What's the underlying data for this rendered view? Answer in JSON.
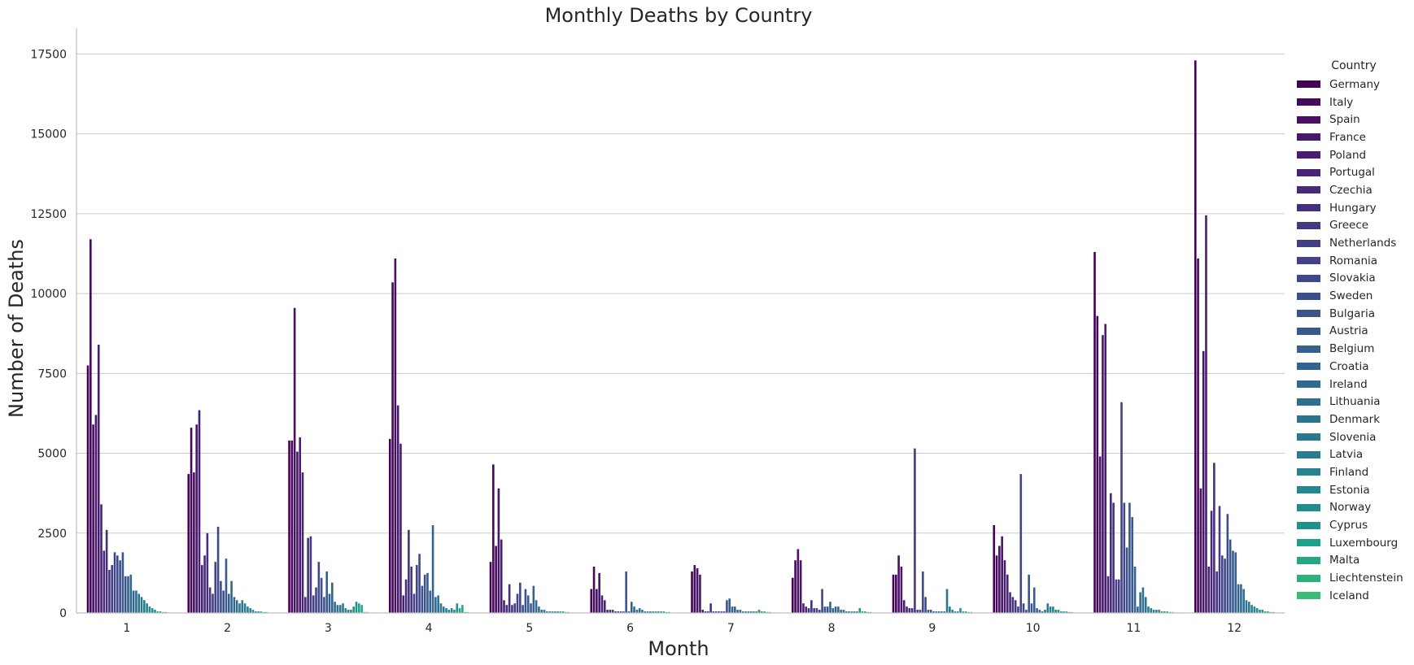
{
  "chart_data": {
    "type": "bar",
    "title": "Monthly Deaths by Country",
    "xlabel": "Month",
    "ylabel": "Number of Deaths",
    "ylim": [
      0,
      18300
    ],
    "yticks": [
      0,
      2500,
      5000,
      7500,
      10000,
      12500,
      15000,
      17500
    ],
    "ytick_labels": [
      "0",
      "2500",
      "5000",
      "7500",
      "10000",
      "12500",
      "15000",
      "17500"
    ],
    "categories": [
      "1",
      "2",
      "3",
      "4",
      "5",
      "6",
      "7",
      "8",
      "9",
      "10",
      "11",
      "12"
    ],
    "grid": "horizontal",
    "legend": {
      "title": "Country",
      "placement": "right"
    },
    "series": [
      {
        "name": "Germany",
        "color": "#440154",
        "values": [
          7750,
          4350,
          5400,
          5450,
          1600,
          750,
          1300,
          1100,
          1200,
          2750,
          11300,
          17300
        ]
      },
      {
        "name": "Italy",
        "color": "#46085c",
        "values": [
          11700,
          5800,
          5400,
          10350,
          4650,
          1450,
          1500,
          1650,
          1200,
          1800,
          9300,
          11100
        ]
      },
      {
        "name": "Spain",
        "color": "#471063",
        "values": [
          5900,
          4400,
          9550,
          11100,
          2100,
          750,
          1400,
          2000,
          1800,
          2100,
          4900,
          3900
        ]
      },
      {
        "name": "France",
        "color": "#481769",
        "values": [
          6200,
          5900,
          5050,
          6500,
          3900,
          1250,
          1200,
          1650,
          1450,
          2400,
          8700,
          8200
        ]
      },
      {
        "name": "Poland",
        "color": "#481d6f",
        "values": [
          8400,
          6350,
          5500,
          5300,
          2300,
          550,
          100,
          300,
          400,
          1650,
          9050,
          12450
        ]
      },
      {
        "name": "Portugal",
        "color": "#482475",
        "values": [
          3400,
          1500,
          4400,
          550,
          400,
          400,
          50,
          200,
          200,
          1200,
          1150,
          1450
        ]
      },
      {
        "name": "Czechia",
        "color": "#472a7a",
        "values": [
          1950,
          1800,
          500,
          1050,
          250,
          100,
          50,
          150,
          150,
          650,
          3750,
          3200
        ]
      },
      {
        "name": "Hungary",
        "color": "#46307e",
        "values": [
          2600,
          2500,
          2350,
          2600,
          900,
          100,
          300,
          400,
          150,
          500,
          3450,
          4700
        ]
      },
      {
        "name": "Greece",
        "color": "#453781",
        "values": [
          1350,
          800,
          2400,
          1450,
          250,
          100,
          50,
          150,
          5150,
          400,
          1050,
          1300
        ]
      },
      {
        "name": "Netherlands",
        "color": "#433d84",
        "values": [
          1500,
          600,
          550,
          600,
          300,
          50,
          50,
          150,
          100,
          200,
          1050,
          3350
        ]
      },
      {
        "name": "Romania",
        "color": "#414287",
        "values": [
          1900,
          1600,
          800,
          1500,
          600,
          50,
          50,
          100,
          100,
          4350,
          6600,
          1800
        ]
      },
      {
        "name": "Slovakia",
        "color": "#3f4889",
        "values": [
          1800,
          2700,
          1600,
          1850,
          950,
          50,
          50,
          750,
          1300,
          300,
          3450,
          1700
        ]
      },
      {
        "name": "Sweden",
        "color": "#3c4f8a",
        "values": [
          1650,
          1000,
          1100,
          850,
          250,
          50,
          50,
          200,
          500,
          100,
          2050,
          3100
        ]
      },
      {
        "name": "Bulgaria",
        "color": "#3a548c",
        "values": [
          1900,
          700,
          500,
          1200,
          750,
          1300,
          400,
          200,
          100,
          1200,
          3450,
          2300
        ]
      },
      {
        "name": "Austria",
        "color": "#375a8c",
        "values": [
          1150,
          1700,
          1300,
          1250,
          550,
          50,
          450,
          350,
          100,
          300,
          3000,
          1950
        ]
      },
      {
        "name": "Belgium",
        "color": "#355f8d",
        "values": [
          1150,
          600,
          600,
          700,
          300,
          350,
          200,
          150,
          50,
          800,
          1450,
          1900
        ]
      },
      {
        "name": "Croatia",
        "color": "#32658e",
        "values": [
          1200,
          1000,
          950,
          2750,
          850,
          200,
          200,
          200,
          50,
          150,
          200,
          900
        ]
      },
      {
        "name": "Ireland",
        "color": "#306a8e",
        "values": [
          700,
          500,
          350,
          500,
          400,
          100,
          100,
          200,
          50,
          100,
          650,
          900
        ]
      },
      {
        "name": "Lithuania",
        "color": "#2e6f8e",
        "values": [
          700,
          400,
          250,
          550,
          200,
          150,
          100,
          100,
          50,
          50,
          800,
          750
        ]
      },
      {
        "name": "Denmark",
        "color": "#2c738e",
        "values": [
          600,
          300,
          250,
          300,
          100,
          100,
          50,
          100,
          50,
          100,
          500,
          400
        ]
      },
      {
        "name": "Slovenia",
        "color": "#2a788e",
        "values": [
          500,
          400,
          300,
          200,
          100,
          50,
          50,
          50,
          750,
          300,
          200,
          350
        ]
      },
      {
        "name": "Latvia",
        "color": "#287d8e",
        "values": [
          400,
          300,
          150,
          150,
          50,
          50,
          50,
          50,
          200,
          200,
          150,
          250
        ]
      },
      {
        "name": "Finland",
        "color": "#26828e",
        "values": [
          300,
          200,
          100,
          100,
          50,
          50,
          50,
          50,
          100,
          200,
          100,
          200
        ]
      },
      {
        "name": "Estonia",
        "color": "#24868e",
        "values": [
          200,
          150,
          100,
          150,
          50,
          50,
          50,
          50,
          50,
          100,
          100,
          150
        ]
      },
      {
        "name": "Norway",
        "color": "#228b8d",
        "values": [
          150,
          100,
          200,
          100,
          50,
          50,
          50,
          50,
          50,
          100,
          100,
          100
        ]
      },
      {
        "name": "Cyprus",
        "color": "#20928c",
        "values": [
          100,
          50,
          350,
          300,
          50,
          50,
          100,
          150,
          150,
          50,
          50,
          100
        ]
      },
      {
        "name": "Luxembourg",
        "color": "#1fa088",
        "values": [
          50,
          50,
          300,
          150,
          50,
          50,
          50,
          50,
          50,
          50,
          50,
          50
        ]
      },
      {
        "name": "Malta",
        "color": "#22a884",
        "values": [
          50,
          50,
          250,
          250,
          50,
          50,
          50,
          50,
          50,
          50,
          50,
          50
        ]
      },
      {
        "name": "Liechtenstein",
        "color": "#2db27d",
        "values": [
          30,
          30,
          30,
          30,
          30,
          30,
          30,
          30,
          30,
          30,
          30,
          30
        ]
      },
      {
        "name": "Iceland",
        "color": "#3bbb75",
        "values": [
          30,
          30,
          30,
          30,
          30,
          30,
          30,
          30,
          30,
          30,
          30,
          30
        ]
      }
    ]
  },
  "legend_colors": [
    "#440154",
    "#46085c",
    "#471063",
    "#481769",
    "#481d6f",
    "#482475",
    "#472a7a",
    "#46307e",
    "#453781",
    "#433d84",
    "#414287",
    "#3f4889",
    "#3c4f8a",
    "#3a548c",
    "#375a8c",
    "#355f8d",
    "#32658e",
    "#306a8e",
    "#2e6f8e",
    "#2c738e",
    "#2a788e",
    "#287d8e",
    "#26828e",
    "#24868e",
    "#228b8d",
    "#20928c",
    "#1fa088",
    "#22a884",
    "#2db27d",
    "#3bbb75"
  ]
}
